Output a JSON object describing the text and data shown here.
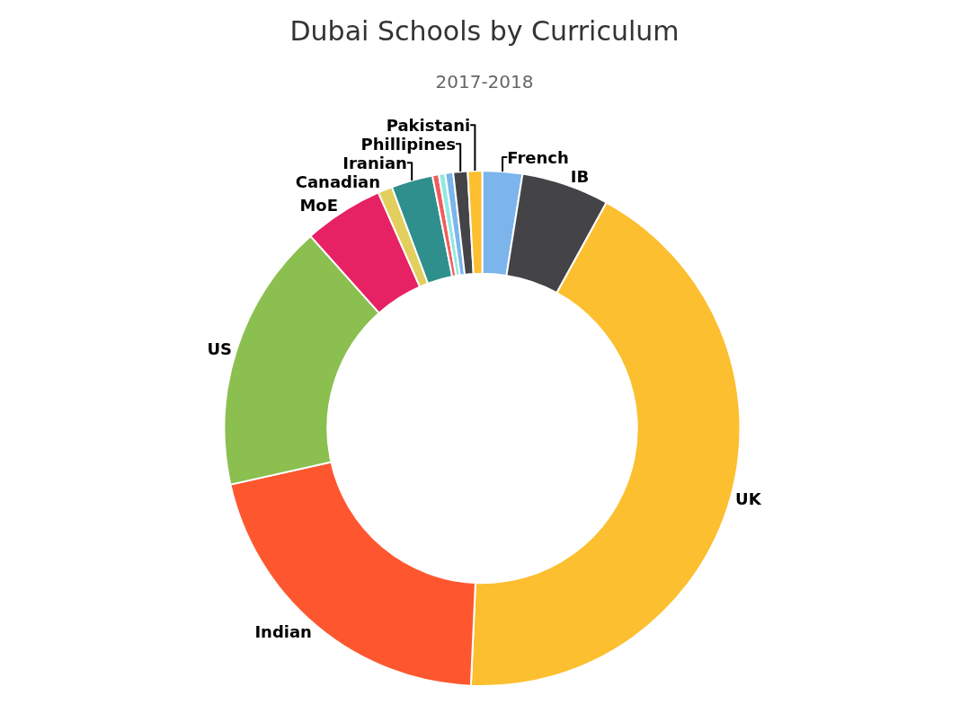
{
  "chart_data": {
    "type": "donut",
    "title": "Dubai Schools by Curriculum",
    "subtitle": "2017-2018",
    "categories": [
      "French",
      "IB",
      "UK",
      "Indian",
      "US",
      "MoE",
      "Canadian",
      "Iranian",
      null,
      null,
      null,
      "Phillipines",
      "Pakistani"
    ],
    "values": [
      2.5,
      5.5,
      42.7,
      20.8,
      16.9,
      5.0,
      0.9,
      2.6,
      0.4,
      0.4,
      0.5,
      0.9,
      0.9
    ],
    "colors": [
      "#7cb5ec",
      "#434348",
      "#fcbf2f",
      "#fe5730",
      "#8bbf50",
      "#e62265",
      "#e2cf5d",
      "#2f8f8c",
      "#f15c5c",
      "#91e8e1",
      "#7cb5ec",
      "#434348",
      "#fcbf2f"
    ],
    "legend": false
  }
}
